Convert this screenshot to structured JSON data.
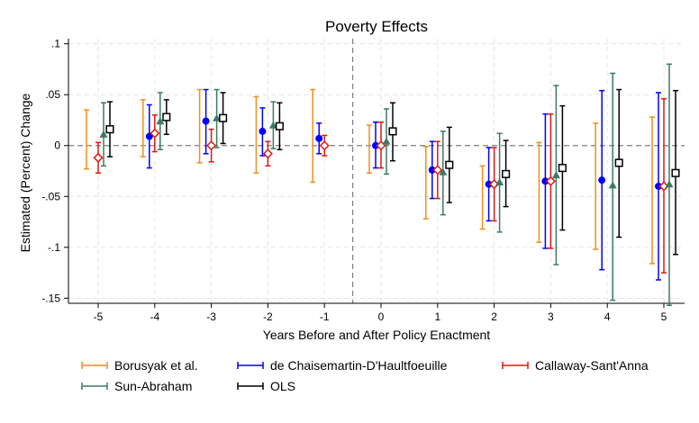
{
  "chart_data": {
    "type": "scatter",
    "subtype": "event-study coefficient plot with 95% confidence intervals",
    "title": "Poverty Effects",
    "xlabel": "Years Before and After Policy Enactment",
    "ylabel": "Estimated (Percent) Change",
    "x_ticks": [
      "-5",
      "-4",
      "-3",
      "-2",
      "-1",
      "0",
      "1",
      "2",
      "3",
      "4",
      "5"
    ],
    "y_ticks": [
      ".1",
      ".05",
      "0",
      "-.05",
      "-.1",
      "-.15"
    ],
    "y_tick_values": [
      0.1,
      0.05,
      0,
      -0.05,
      -0.1,
      -0.15
    ],
    "ylim": [
      -0.155,
      0.105
    ],
    "grid": true,
    "reference_lines": {
      "horizontal_y": 0,
      "vertical_between": [
        "-1",
        "0"
      ]
    },
    "legend_position": "bottom",
    "x": [
      -5,
      -4,
      -3,
      -2,
      -1,
      0,
      1,
      2,
      3,
      4,
      5
    ],
    "series": [
      {
        "name": "Borusyak et al.",
        "color": "#f28e1c",
        "marker": "none",
        "estimates": [
          0.006,
          0.017,
          0.019,
          0.01,
          0.009,
          -0.003,
          -0.036,
          -0.05,
          -0.045,
          -0.04,
          -0.044
        ],
        "ci_low": [
          -0.023,
          -0.011,
          -0.017,
          -0.027,
          -0.036,
          -0.027,
          -0.072,
          -0.082,
          -0.095,
          -0.102,
          -0.116
        ],
        "ci_high": [
          0.035,
          0.045,
          0.055,
          0.048,
          0.055,
          0.02,
          -0.001,
          -0.02,
          0.003,
          0.022,
          0.028
        ]
      },
      {
        "name": "de Chaisemartin-D'Haultfoeuille",
        "color": "#0000ff",
        "marker": "filled-circle",
        "estimates": [
          null,
          0.009,
          0.024,
          0.014,
          0.007,
          0.0,
          -0.024,
          -0.038,
          -0.035,
          -0.034,
          -0.04
        ],
        "ci_low": [
          null,
          -0.022,
          -0.008,
          -0.01,
          -0.008,
          -0.022,
          -0.052,
          -0.074,
          -0.101,
          -0.122,
          -0.132
        ],
        "ci_high": [
          null,
          0.04,
          0.055,
          0.037,
          0.022,
          0.023,
          0.004,
          -0.002,
          0.031,
          0.054,
          0.052
        ]
      },
      {
        "name": "Callaway-Sant'Anna",
        "color": "#e8140c",
        "marker": "hollow-diamond",
        "estimates": [
          -0.012,
          0.012,
          0.0,
          -0.008,
          0.0,
          0.0,
          -0.024,
          -0.038,
          -0.035,
          null,
          -0.04
        ],
        "ci_low": [
          -0.027,
          -0.006,
          -0.016,
          -0.02,
          -0.01,
          -0.022,
          -0.052,
          -0.074,
          -0.101,
          null,
          -0.125
        ],
        "ci_high": [
          0.003,
          0.03,
          0.016,
          0.004,
          0.01,
          0.023,
          0.004,
          -0.002,
          0.031,
          null,
          0.046
        ]
      },
      {
        "name": "Sun-Abraham",
        "color": "#3a7a6a",
        "marker": "filled-triangle",
        "estimates": [
          0.011,
          0.024,
          0.027,
          0.02,
          null,
          0.004,
          -0.026,
          -0.036,
          -0.029,
          -0.039,
          -0.038
        ],
        "ci_low": [
          -0.02,
          -0.004,
          -0.002,
          -0.003,
          null,
          -0.028,
          -0.068,
          -0.085,
          -0.117,
          -0.152,
          -0.157
        ],
        "ci_high": [
          0.042,
          0.052,
          0.055,
          0.043,
          null,
          0.036,
          0.014,
          0.012,
          0.059,
          0.071,
          0.08
        ]
      },
      {
        "name": "OLS",
        "color": "#000000",
        "marker": "hollow-square",
        "estimates": [
          0.016,
          0.028,
          0.027,
          0.019,
          null,
          0.014,
          -0.019,
          -0.028,
          -0.022,
          -0.017,
          -0.027
        ],
        "ci_low": [
          -0.011,
          0.011,
          0.002,
          -0.004,
          null,
          -0.015,
          -0.056,
          -0.06,
          -0.083,
          -0.09,
          -0.107
        ],
        "ci_high": [
          0.043,
          0.045,
          0.052,
          0.042,
          null,
          0.042,
          0.018,
          0.005,
          0.039,
          0.055,
          0.054
        ]
      }
    ]
  }
}
